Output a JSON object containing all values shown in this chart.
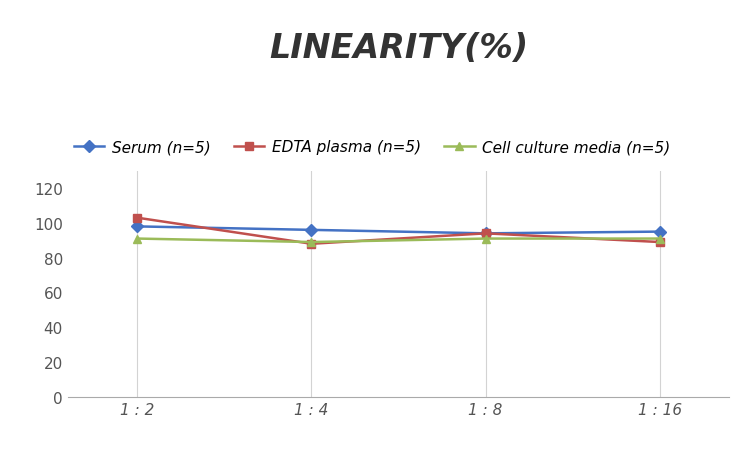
{
  "title": "LINEARITY(%)",
  "x_labels": [
    "1 : 2",
    "1 : 4",
    "1 : 8",
    "1 : 16"
  ],
  "x_positions": [
    0,
    1,
    2,
    3
  ],
  "series": [
    {
      "label": "Serum (n=5)",
      "values": [
        98,
        96,
        94,
        95
      ],
      "color": "#4472C4",
      "marker": "D",
      "marker_color": "#4472C4"
    },
    {
      "label": "EDTA plasma (n=5)",
      "values": [
        103,
        88,
        94,
        89
      ],
      "color": "#C0504D",
      "marker": "s",
      "marker_color": "#C0504D"
    },
    {
      "label": "Cell culture media (n=5)",
      "values": [
        91,
        89,
        91,
        91
      ],
      "color": "#9BBB59",
      "marker": "^",
      "marker_color": "#9BBB59"
    }
  ],
  "ylim": [
    0,
    130
  ],
  "yticks": [
    0,
    20,
    40,
    60,
    80,
    100,
    120
  ],
  "background_color": "#ffffff",
  "grid_color": "#d3d3d3",
  "title_fontsize": 24,
  "legend_fontsize": 11,
  "tick_fontsize": 11
}
